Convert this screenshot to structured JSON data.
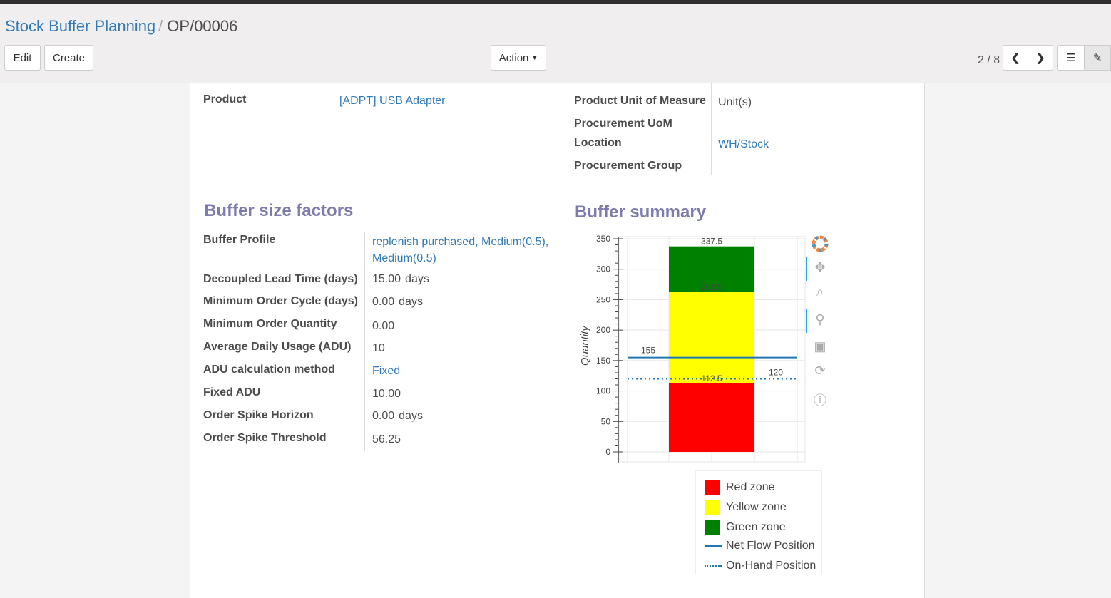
{
  "breadcrumb": {
    "parent": "Stock Buffer Planning",
    "current": "OP/00006"
  },
  "toolbar": {
    "edit": "Edit",
    "create": "Create",
    "action": "Action",
    "pager": "2 / 8"
  },
  "form": {
    "product_label": "Product",
    "product_value": "[ADPT] USB Adapter",
    "uom_label": "Product Unit of Measure",
    "uom_value": "Unit(s)",
    "proc_uom_label": "Procurement UoM",
    "location_label": "Location",
    "location_value": "WH/Stock",
    "proc_group_label": "Procurement Group"
  },
  "factors": {
    "title": "Buffer size factors",
    "rows": [
      {
        "label": "Buffer Profile",
        "value": "replenish purchased, Medium(0.5),",
        "value2": "Medium(0.5)"
      },
      {
        "label": "Decoupled Lead Time (days)",
        "value": "15.00",
        "unit": "days"
      },
      {
        "label": "Minimum Order Cycle (days)",
        "value": "0.00",
        "unit": "days"
      },
      {
        "label": "Minimum Order Quantity",
        "value": "0.00"
      },
      {
        "label": "Average Daily Usage (ADU)",
        "value": "10"
      },
      {
        "label": "ADU calculation method",
        "value": "Fixed"
      },
      {
        "label": "Fixed ADU",
        "value": "10.00"
      },
      {
        "label": "Order Spike Horizon",
        "value": "0.00",
        "unit": "days"
      },
      {
        "label": "Order Spike Threshold",
        "value": "56.25"
      }
    ]
  },
  "summary": {
    "title": "Buffer summary"
  },
  "chart_data": {
    "type": "bar",
    "stacked": true,
    "ylabel": "Quantity",
    "ylim": [
      0,
      350
    ],
    "yticks": [
      0,
      50,
      100,
      150,
      200,
      250,
      300,
      350
    ],
    "grid": true,
    "series": [
      {
        "name": "Red zone",
        "bottom": 0,
        "top": 112.5,
        "color": "#ff0000"
      },
      {
        "name": "Yellow zone",
        "bottom": 112.5,
        "top": 262.5,
        "color": "#ffff00"
      },
      {
        "name": "Green zone",
        "bottom": 262.5,
        "top": 337.5,
        "color": "#008000"
      }
    ],
    "bar_labels": [
      "112.5",
      "262.5",
      "337.5"
    ],
    "lines": [
      {
        "name": "Net Flow Position",
        "value": 155,
        "label": "155",
        "style": "solid",
        "color": "#1f77b4"
      },
      {
        "name": "On-Hand Position",
        "value": 120,
        "label": "120",
        "style": "dotted",
        "color": "#1f77b4"
      }
    ],
    "legend": "bottom"
  }
}
